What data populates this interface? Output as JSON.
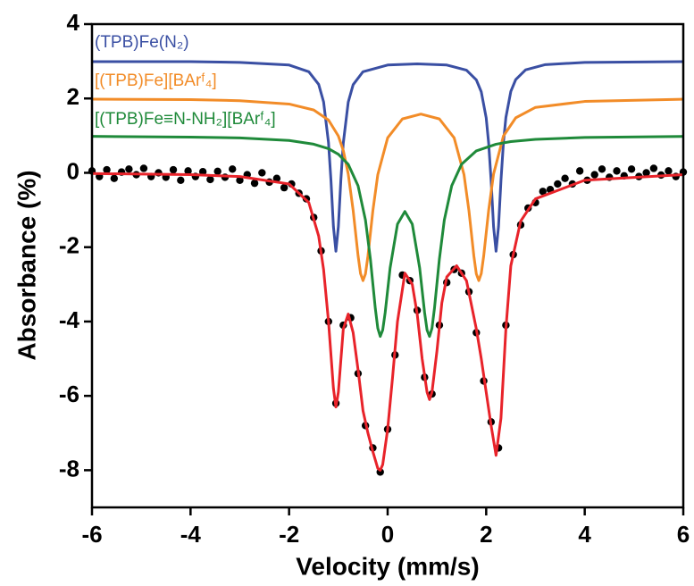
{
  "chart_data": {
    "type": "line",
    "xlabel": "Velocity (mm/s)",
    "ylabel": "Absorbance (%)",
    "xlim": [
      -6,
      6
    ],
    "xticks": [
      -6,
      -4,
      -2,
      0,
      2,
      4,
      6
    ],
    "ylim": [
      -9,
      4
    ],
    "yticks": [
      -8,
      -6,
      -4,
      -2,
      0,
      2,
      4
    ],
    "series": [
      {
        "type": "scatter",
        "color": "#000000",
        "x": [
          -6,
          -5.85,
          -5.7,
          -5.55,
          -5.4,
          -5.25,
          -5.1,
          -4.95,
          -4.8,
          -4.65,
          -4.5,
          -4.35,
          -4.2,
          -4.05,
          -3.9,
          -3.75,
          -3.6,
          -3.45,
          -3.3,
          -3.15,
          -3,
          -2.85,
          -2.7,
          -2.55,
          -2.4,
          -2.25,
          -2.1,
          -1.95,
          -1.8,
          -1.65,
          -1.5,
          -1.35,
          -1.2,
          -1.05,
          -0.9,
          -0.75,
          -0.6,
          -0.45,
          -0.3,
          -0.15,
          0,
          0.15,
          0.3,
          0.45,
          0.6,
          0.75,
          0.9,
          1.05,
          1.2,
          1.35,
          1.5,
          1.65,
          1.8,
          1.95,
          2.1,
          2.25,
          2.4,
          2.55,
          2.7,
          2.85,
          3,
          3.15,
          3.3,
          3.45,
          3.6,
          3.75,
          3.9,
          4.05,
          4.2,
          4.35,
          4.5,
          4.65,
          4.8,
          4.95,
          5.1,
          5.25,
          5.4,
          5.55,
          5.7,
          5.85,
          6
        ],
        "values": [
          0.05,
          -0.1,
          0.08,
          -0.15,
          0.02,
          0.1,
          -0.05,
          0.12,
          -0.1,
          0,
          -0.12,
          0.08,
          -0.2,
          0.05,
          -0.1,
          0.03,
          -0.18,
          0.04,
          -0.12,
          0.1,
          -0.2,
          -0.05,
          -0.28,
          0,
          -0.25,
          -0.15,
          -0.4,
          -0.3,
          -0.55,
          -0.7,
          -1.2,
          -2.1,
          -4,
          -6.2,
          -4.1,
          -3.9,
          -5.4,
          -6.8,
          -7.4,
          -8.05,
          -6.9,
          -4.9,
          -2.75,
          -2.9,
          -3.7,
          -5.5,
          -5.95,
          -4.1,
          -2.95,
          -2.6,
          -2.7,
          -3.2,
          -4.3,
          -5.6,
          -6.7,
          -7.4,
          -4.1,
          -2.2,
          -1.4,
          -0.95,
          -0.8,
          -0.5,
          -0.45,
          -0.3,
          -0.15,
          -0.3,
          0.05,
          -0.2,
          -0.05,
          0.1,
          -0.12,
          0.05,
          -0.08,
          0.1,
          -0.1,
          0,
          0.12,
          -0.06,
          0.05,
          -0.1,
          0.02
        ]
      },
      {
        "type": "line",
        "color": "#e8232a",
        "x": [
          -6,
          -4,
          -3,
          -2,
          -1.6,
          -1.4,
          -1.3,
          -1.2,
          -1.1,
          -1.05,
          -1,
          -0.9,
          -0.8,
          -0.7,
          -0.6,
          -0.5,
          -0.4,
          -0.3,
          -0.2,
          -0.15,
          -0.1,
          0,
          0.1,
          0.2,
          0.35,
          0.5,
          0.6,
          0.7,
          0.8,
          0.85,
          0.9,
          1,
          1.1,
          1.2,
          1.4,
          1.6,
          1.8,
          1.9,
          2,
          2.1,
          2.2,
          2.3,
          2.4,
          2.5,
          2.7,
          3,
          4,
          6
        ],
        "values": [
          -0.02,
          -0.05,
          -0.1,
          -0.3,
          -0.8,
          -1.7,
          -2.6,
          -4,
          -5.8,
          -6.3,
          -5.9,
          -4.2,
          -3.8,
          -4.3,
          -5.3,
          -6.4,
          -7,
          -7.5,
          -7.95,
          -8,
          -7.85,
          -6.9,
          -5.5,
          -4,
          -2.7,
          -3,
          -3.8,
          -5,
          -5.9,
          -6.1,
          -5.9,
          -4.8,
          -3.5,
          -2.8,
          -2.5,
          -2.9,
          -4.2,
          -5,
          -5.9,
          -6.8,
          -7.6,
          -6.6,
          -4.2,
          -2.5,
          -1.3,
          -0.7,
          -0.2,
          -0.05
        ]
      },
      {
        "type": "line",
        "name": "(TPB)Fe(N₂)",
        "color": "#3a4fa3",
        "x": [
          -6,
          -4,
          -3,
          -2,
          -1.6,
          -1.4,
          -1.3,
          -1.2,
          -1.15,
          -1.1,
          -1.05,
          -1,
          -0.95,
          -0.9,
          -0.8,
          -0.7,
          -0.5,
          0,
          0.6,
          1.2,
          1.6,
          1.8,
          1.9,
          2,
          2.05,
          2.1,
          2.15,
          2.2,
          2.25,
          2.3,
          2.35,
          2.4,
          2.5,
          2.6,
          2.8,
          3.2,
          4,
          6
        ],
        "values": [
          2.99,
          2.99,
          2.97,
          2.9,
          2.72,
          2.38,
          1.91,
          0.81,
          -0.21,
          -1.45,
          -2.11,
          -1.45,
          -0.21,
          0.8,
          1.9,
          2.37,
          2.72,
          2.9,
          2.93,
          2.9,
          2.76,
          2.5,
          2.18,
          1.48,
          0.8,
          -0.21,
          -1.45,
          -2.11,
          -1.45,
          -0.21,
          0.81,
          1.49,
          2.19,
          2.51,
          2.77,
          2.91,
          2.97,
          2.99
        ]
      },
      {
        "type": "line",
        "name": "[(TPB)Fe][BArᶠ₄]",
        "color": "#f28c28",
        "x": [
          -6,
          -4,
          -3,
          -2,
          -1.5,
          -1.2,
          -1,
          -0.9,
          -0.8,
          -0.7,
          -0.6,
          -0.55,
          -0.5,
          -0.45,
          -0.4,
          -0.3,
          -0.2,
          0,
          0.3,
          0.675,
          1.05,
          1.35,
          1.55,
          1.65,
          1.75,
          1.8,
          1.85,
          1.9,
          1.95,
          2.05,
          2.15,
          2.35,
          2.6,
          3,
          4,
          6
        ],
        "values": [
          1.98,
          1.97,
          1.94,
          1.85,
          1.69,
          1.42,
          0.99,
          0.6,
          -0.03,
          -1.01,
          -2.23,
          -2.71,
          -2.9,
          -2.72,
          -2.24,
          -1.02,
          -0.05,
          0.94,
          1.45,
          1.58,
          1.45,
          0.94,
          -0.05,
          -1.02,
          -2.24,
          -2.72,
          -2.9,
          -2.71,
          -2.23,
          -1.01,
          -0.03,
          0.99,
          1.48,
          1.76,
          1.92,
          1.98
        ]
      },
      {
        "type": "line",
        "name": "[(TPB)Fe≡N-NH₂][BArᶠ₄]",
        "color": "#1f8a3a",
        "x": [
          -6,
          -4,
          -3,
          -2,
          -1.5,
          -1.2,
          -1,
          -0.8,
          -0.6,
          -0.45,
          -0.35,
          -0.25,
          -0.2,
          -0.15,
          -0.1,
          -0.05,
          0.05,
          0.2,
          0.35,
          0.5,
          0.65,
          0.75,
          0.8,
          0.85,
          0.9,
          0.95,
          1.05,
          1.15,
          1.3,
          1.5,
          1.8,
          2.2,
          2.5,
          3,
          4,
          6
        ],
        "values": [
          0.98,
          0.96,
          0.94,
          0.87,
          0.77,
          0.65,
          0.5,
          0.23,
          -0.35,
          -1.27,
          -2.32,
          -3.65,
          -4.18,
          -4.4,
          -4.23,
          -3.76,
          -2.56,
          -1.38,
          -1.04,
          -1.38,
          -2.56,
          -3.76,
          -4.23,
          -4.4,
          -4.18,
          -3.65,
          -2.32,
          -1.27,
          -0.35,
          0.23,
          0.59,
          0.77,
          0.84,
          0.9,
          0.95,
          0.98
        ]
      }
    ]
  }
}
